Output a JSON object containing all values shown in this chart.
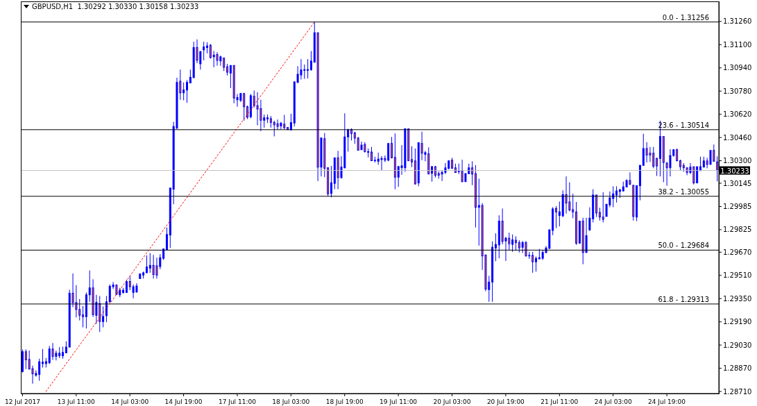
{
  "chart_data": {
    "type": "candlestick",
    "title": "GBPUSD,H1  1.30292 1.30330 1.30158 1.30233",
    "categories": [
      "12 Jul 2017",
      null,
      null,
      null,
      null,
      null,
      null,
      null,
      null,
      null,
      null,
      null,
      null,
      null,
      null,
      null,
      "13 Jul 11:00",
      null,
      null,
      null,
      null,
      null,
      null,
      null,
      null,
      null,
      null,
      null,
      null,
      null,
      null,
      null,
      "14 Jul 03:00",
      null,
      null,
      null,
      null,
      null,
      null,
      null,
      null,
      null,
      null,
      null,
      null,
      null,
      null,
      null,
      "14 Jul 19:00",
      null,
      null,
      null,
      null,
      null,
      null,
      null,
      null,
      null,
      null,
      null,
      null,
      null,
      null,
      null,
      "17 Jul 11:00",
      null,
      null,
      null,
      null,
      null,
      null,
      null,
      null,
      null,
      null,
      null,
      null,
      null,
      null,
      null,
      "18 Jul 03:00",
      null,
      null,
      null,
      null,
      null,
      null,
      null,
      null,
      null,
      null,
      null,
      null,
      null,
      null,
      null,
      "18 Jul 19:00",
      null,
      null,
      null,
      null,
      null,
      null,
      null,
      null,
      null,
      null,
      null,
      null,
      null,
      null,
      null,
      "19 Jul 11:00",
      null,
      null,
      null,
      null,
      null,
      null,
      null,
      null,
      null,
      null,
      null,
      null,
      null,
      null,
      null,
      "20 Jul 03:00",
      null,
      null,
      null,
      null,
      null,
      null,
      null,
      null,
      null,
      null,
      null,
      null,
      null,
      null,
      null,
      "20 Jul 19:00",
      null,
      null,
      null,
      null,
      null,
      null,
      null,
      null,
      null,
      null,
      null,
      null,
      null,
      null,
      null,
      "21 Jul 11:00",
      null,
      null,
      null,
      null,
      null,
      null,
      null,
      null,
      null,
      null,
      null,
      null,
      null,
      null,
      null,
      "24 Jul 03:00",
      null,
      null,
      null,
      null,
      null,
      null,
      null,
      null,
      null,
      null,
      null,
      null,
      null,
      null,
      null,
      "24 Jul 19:00",
      null,
      null,
      null,
      null,
      null,
      null,
      null,
      null,
      null,
      null,
      null,
      null,
      null,
      null,
      null
    ],
    "color": "#0000ff",
    "colors": [
      "#0000ff",
      "#ff5a1f",
      "#ff5a1f",
      "#ff5a1f",
      "#0000ff",
      "#0000ff",
      "#0000ff",
      "#0000ff",
      "#0000ff",
      "#ff5a1f",
      "#0000ff",
      "#0000ff",
      "#0000ff",
      "#0000ff",
      "#0000ff",
      "#ff5a1f",
      "#ff5a1f",
      "#ff5a1f",
      "#ff5a1f",
      "#0000ff",
      "#0000ff",
      "#ff5a1f",
      "#0000ff",
      "#ff5a1f",
      "#0000ff",
      "#0000ff",
      "#0000ff",
      "#0000ff",
      "#ff5a1f",
      "#0000ff",
      "#0000ff",
      "#0000ff",
      "#ff5a1f",
      "#0000ff",
      "#0000ff",
      "#0000ff",
      "#0000ff",
      "#0000ff",
      "#0000ff",
      "#ff5a1f",
      "#ff5a1f",
      "#0000ff",
      "#0000ff",
      "#0000ff",
      "#0000ff",
      "#0000ff",
      "#0000ff",
      "#ff5a1f",
      "#0000ff",
      "#0000ff",
      "#0000ff",
      "#0000ff",
      "#ff5a1f",
      "#0000ff",
      "#0000ff",
      "#0000ff",
      "#ff5a1f",
      "#0000ff",
      "#ff5a1f",
      "#0000ff",
      "#ff5a1f",
      "#ff5a1f",
      "#0000ff",
      "#ff5a1f",
      "#0000ff",
      "#0000ff",
      "#ff5a1f",
      "#ff5a1f",
      "#0000ff",
      "#ff5a1f",
      "#ff5a1f",
      "#ff5a1f",
      "#0000ff",
      "#0000ff",
      "#ff5a1f",
      "#ff5a1f",
      "#ff5a1f",
      "#0000ff",
      "#ff5a1f",
      "#ff5a1f",
      "#0000ff",
      "#0000ff",
      "#0000ff",
      "#0000ff",
      "#0000ff",
      "#0000ff",
      "#0000ff",
      "#0000ff",
      "#ff5a1f",
      "#0000ff",
      "#ff5a1f",
      "#ff5a1f",
      "#0000ff",
      "#0000ff",
      "#ff5a1f",
      "#0000ff",
      "#0000ff",
      "#0000ff",
      "#ff5a1f",
      "#ff5a1f",
      "#ff5a1f",
      "#0000ff",
      "#ff5a1f",
      "#ff5a1f",
      "#ff5a1f",
      "#0000ff",
      "#0000ff",
      "#0000ff",
      "#ff5a1f",
      "#0000ff",
      "#ff5a1f",
      "#ff5a1f",
      "#0000ff",
      "#0000ff",
      "#0000ff",
      "#ff5a1f",
      "#ff5a1f",
      "#ff5a1f",
      "#0000ff",
      "#ff5a1f",
      "#0000ff",
      "#ff5a1f",
      "#0000ff",
      "#ff5a1f",
      "#ff5a1f",
      "#0000ff",
      "#0000ff",
      "#0000ff",
      "#ff5a1f",
      "#ff5a1f",
      "#0000ff",
      "#ff5a1f",
      "#0000ff",
      "#0000ff",
      "#ff5a1f",
      "#ff5a1f",
      "#0000ff",
      "#ff5a1f",
      "#ff5a1f",
      "#0000ff",
      "#0000ff",
      "#0000ff",
      "#0000ff",
      "#ff5a1f",
      "#0000ff",
      "#ff5a1f",
      "#0000ff",
      "#ff5a1f",
      "#ff5a1f",
      "#0000ff",
      "#ff5a1f",
      "#0000ff",
      "#ff5a1f",
      "#0000ff",
      "#0000ff",
      "#0000ff",
      "#0000ff",
      "#0000ff",
      "#0000ff",
      "#ff5a1f",
      "#0000ff",
      "#0000ff",
      "#ff5a1f",
      "#ff5a1f",
      "#ff5a1f",
      "#ff5a1f",
      "#0000ff",
      "#ff5a1f",
      "#0000ff",
      "#0000ff",
      "#0000ff",
      "#ff5a1f",
      "#ff5a1f",
      "#ff5a1f",
      "#0000ff",
      "#0000ff",
      "#0000ff",
      "#0000ff",
      "#0000ff",
      "#0000ff",
      "#0000ff",
      "#ff5a1f",
      "#ff5a1f",
      "#0000ff",
      "#0000ff",
      "#0000ff",
      "#ff5a1f",
      "#ff5a1f",
      "#ff5a1f",
      "#ff5a1f",
      "#0000ff",
      "#ff5a1f",
      "#ff5a1f",
      "#0000ff",
      "#0000ff",
      "#ff5a1f",
      "#ff5a1f",
      "#ff5a1f",
      "#ff5a1f",
      "#0000ff",
      "#ff5a1f",
      "#0000ff",
      "#0000ff",
      "#0000ff",
      "#ff5a1f",
      "#0000ff",
      "#ff5a1f",
      "#ff5a1f"
    ],
    "ohlc": [
      [
        1.28848,
        1.29,
        1.2884,
        1.28984
      ],
      [
        1.28984,
        1.29,
        1.28864,
        1.28928
      ],
      [
        1.28931,
        1.28992,
        1.28864,
        1.28864
      ],
      [
        1.28867,
        1.28888,
        1.28764,
        1.28832
      ],
      [
        1.28822,
        1.28856,
        1.28812,
        1.28835
      ],
      [
        1.28827,
        1.28936,
        1.28784,
        1.28915
      ],
      [
        1.28902,
        1.29003,
        1.28875,
        1.28912
      ],
      [
        1.28902,
        1.28941,
        1.28875,
        1.28916
      ],
      [
        1.28908,
        1.29024,
        1.28899,
        1.29003
      ],
      [
        1.29003,
        1.29044,
        1.28928,
        1.28952
      ],
      [
        1.28952,
        1.28992,
        1.28924,
        1.28974
      ],
      [
        1.28956,
        1.29016,
        1.2894,
        1.28974
      ],
      [
        1.28956,
        1.29019,
        1.28936,
        1.28979
      ],
      [
        1.28976,
        1.29056,
        1.28976,
        1.29016
      ],
      [
        1.29016,
        1.29411,
        1.29016,
        1.29387
      ],
      [
        1.29387,
        1.29523,
        1.29291,
        1.29323
      ],
      [
        1.29323,
        1.29443,
        1.2922,
        1.29275
      ],
      [
        1.29275,
        1.29347,
        1.292,
        1.29235
      ],
      [
        1.29238,
        1.29299,
        1.29152,
        1.29225
      ],
      [
        1.29225,
        1.29392,
        1.29144,
        1.29376
      ],
      [
        1.29376,
        1.29544,
        1.29328,
        1.29424
      ],
      [
        1.29424,
        1.29483,
        1.29224,
        1.2924
      ],
      [
        1.29235,
        1.29376,
        1.29176,
        1.29324
      ],
      [
        1.29316,
        1.29368,
        1.2912,
        1.29192
      ],
      [
        1.29192,
        1.29296,
        1.29152,
        1.29227
      ],
      [
        1.29232,
        1.29368,
        1.29187,
        1.29328
      ],
      [
        1.29328,
        1.29448,
        1.2932,
        1.29435
      ],
      [
        1.29432,
        1.29464,
        1.29416,
        1.29444
      ],
      [
        1.29444,
        1.29444,
        1.29376,
        1.29379
      ],
      [
        1.29376,
        1.29424,
        1.2936,
        1.29408
      ],
      [
        1.29392,
        1.29424,
        1.29384,
        1.29408
      ],
      [
        1.29392,
        1.2948,
        1.29392,
        1.29468
      ],
      [
        1.29468,
        1.29504,
        1.29408,
        1.29432
      ],
      [
        1.29392,
        1.29448,
        1.29352,
        1.29432
      ],
      [
        1.29395,
        1.29456,
        1.29392,
        1.29437
      ],
      [
        1.29488,
        1.29523,
        1.29488,
        1.2952
      ],
      [
        1.29512,
        1.29536,
        1.29488,
        1.29528
      ],
      [
        1.29528,
        1.29648,
        1.29528,
        1.29568
      ],
      [
        1.2956,
        1.29664,
        1.29528,
        1.29579
      ],
      [
        1.29579,
        1.29651,
        1.29488,
        1.29516
      ],
      [
        1.29576,
        1.29632,
        1.29488,
        1.29512
      ],
      [
        1.29571,
        1.29656,
        1.29552,
        1.29632
      ],
      [
        1.29628,
        1.29696,
        1.29616,
        1.29692
      ],
      [
        1.29688,
        1.2984,
        1.29688,
        1.29792
      ],
      [
        1.29788,
        1.30112,
        1.29699,
        1.30112
      ],
      [
        1.30104,
        1.30568,
        1.3,
        1.30536
      ],
      [
        1.30524,
        1.30872,
        1.3052,
        1.3084
      ],
      [
        1.30848,
        1.30928,
        1.3072,
        1.30768
      ],
      [
        1.30768,
        1.3084,
        1.30716,
        1.30788
      ],
      [
        1.30787,
        1.30856,
        1.30699,
        1.3084
      ],
      [
        1.30836,
        1.30928,
        1.30835,
        1.30875
      ],
      [
        1.30872,
        1.3112,
        1.30872,
        1.3108
      ],
      [
        1.3108,
        1.31136,
        1.30972,
        1.30992
      ],
      [
        1.30968,
        1.31056,
        1.30928,
        1.31052
      ],
      [
        1.31064,
        1.3112,
        1.30992,
        1.31084
      ],
      [
        1.3108,
        1.31116,
        1.3104,
        1.31091
      ],
      [
        1.31096,
        1.31104,
        1.31004,
        1.31011
      ],
      [
        1.31016,
        1.31056,
        1.30944,
        1.31028
      ],
      [
        1.31032,
        1.31048,
        1.30955,
        1.30992
      ],
      [
        1.30988,
        1.31024,
        1.30955,
        1.31016
      ],
      [
        1.31008,
        1.31008,
        1.30918,
        1.30944
      ],
      [
        1.30947,
        1.30968,
        1.30888,
        1.3091
      ],
      [
        1.30904,
        1.3096,
        1.308,
        1.30956
      ],
      [
        1.30956,
        1.3096,
        1.30696,
        1.30732
      ],
      [
        1.3072,
        1.3076,
        1.30672,
        1.30736
      ],
      [
        1.30716,
        1.30768,
        1.30704,
        1.30763
      ],
      [
        1.30763,
        1.30768,
        1.30576,
        1.30672
      ],
      [
        1.30672,
        1.3068,
        1.30587,
        1.306
      ],
      [
        1.30603,
        1.3076,
        1.30592,
        1.30748
      ],
      [
        1.30744,
        1.30784,
        1.30667,
        1.3068
      ],
      [
        1.3068,
        1.30772,
        1.30544,
        1.30656
      ],
      [
        1.30659,
        1.3072,
        1.30504,
        1.30579
      ],
      [
        1.30579,
        1.30619,
        1.30528,
        1.30596
      ],
      [
        1.30588,
        1.30619,
        1.3056,
        1.30596
      ],
      [
        1.3059,
        1.30608,
        1.30528,
        1.30564
      ],
      [
        1.30564,
        1.30576,
        1.30468,
        1.30548
      ],
      [
        1.30555,
        1.30584,
        1.30515,
        1.30536
      ],
      [
        1.3054,
        1.30568,
        1.30515,
        1.30558
      ],
      [
        1.30552,
        1.30616,
        1.30515,
        1.30528
      ],
      [
        1.30529,
        1.30532,
        1.30512,
        1.30515
      ],
      [
        1.30512,
        1.30624,
        1.30512,
        1.30563
      ],
      [
        1.3056,
        1.30848,
        1.30536,
        1.30843
      ],
      [
        1.3084,
        1.30952,
        1.30836,
        1.30896
      ],
      [
        1.30891,
        1.31,
        1.3086,
        1.30926
      ],
      [
        1.30923,
        1.30963,
        1.30864,
        1.30928
      ],
      [
        1.30923,
        1.31,
        1.30867,
        1.30928
      ],
      [
        1.30928,
        1.31056,
        1.3092,
        1.30987
      ],
      [
        1.30979,
        1.31256,
        1.30976,
        1.31182
      ],
      [
        1.31182,
        1.31182,
        1.3016,
        1.30256
      ],
      [
        1.30256,
        1.30457,
        1.30192,
        1.30457
      ],
      [
        1.30452,
        1.30491,
        1.30187,
        1.30248
      ],
      [
        1.30251,
        1.30256,
        1.30056,
        1.30072
      ],
      [
        1.30075,
        1.30264,
        1.30048,
        1.30148
      ],
      [
        1.30144,
        1.3032,
        1.30104,
        1.3032
      ],
      [
        1.3032,
        1.30368,
        1.30104,
        1.30184
      ],
      [
        1.30184,
        1.30331,
        1.30176,
        1.30256
      ],
      [
        1.30251,
        1.30627,
        1.30248,
        1.30464
      ],
      [
        1.30464,
        1.3052,
        1.30363,
        1.30512
      ],
      [
        1.30515,
        1.30523,
        1.3044,
        1.30488
      ],
      [
        1.30492,
        1.30499,
        1.30416,
        1.30456
      ],
      [
        1.30456,
        1.30464,
        1.30372,
        1.30372
      ],
      [
        1.30376,
        1.30432,
        1.30376,
        1.30408
      ],
      [
        1.30412,
        1.30428,
        1.30356,
        1.30363
      ],
      [
        1.30363,
        1.30384,
        1.30323,
        1.30358
      ],
      [
        1.3036,
        1.30395,
        1.303,
        1.303
      ],
      [
        1.303,
        1.30328,
        1.30288,
        1.30304
      ],
      [
        1.30296,
        1.30356,
        1.30272,
        1.30312
      ],
      [
        1.30308,
        1.30332,
        1.30232,
        1.30316
      ],
      [
        1.30316,
        1.30336,
        1.30291,
        1.30304
      ],
      [
        1.30304,
        1.30419,
        1.30296,
        1.30419
      ],
      [
        1.30419,
        1.30464,
        1.30316,
        1.3032
      ],
      [
        1.30323,
        1.30488,
        1.30104,
        1.30187
      ],
      [
        1.30187,
        1.30264,
        1.3012,
        1.3026
      ],
      [
        1.30252,
        1.30408,
        1.30203,
        1.30265
      ],
      [
        1.30252,
        1.30524,
        1.30224,
        1.3052
      ],
      [
        1.3052,
        1.30523,
        1.30299,
        1.303
      ],
      [
        1.30308,
        1.304,
        1.30256,
        1.30291
      ],
      [
        1.30299,
        1.30384,
        1.30136,
        1.3014
      ],
      [
        1.30147,
        1.30428,
        1.30124,
        1.30424
      ],
      [
        1.30419,
        1.305,
        1.30304,
        1.30352
      ],
      [
        1.30344,
        1.30368,
        1.30296,
        1.30356
      ],
      [
        1.30348,
        1.30392,
        1.30206,
        1.30209
      ],
      [
        1.30214,
        1.30264,
        1.30156,
        1.30259
      ],
      [
        1.30259,
        1.30264,
        1.30184,
        1.302
      ],
      [
        1.30212,
        1.30227,
        1.30176,
        1.302
      ],
      [
        1.30208,
        1.30232,
        1.3016,
        1.3022
      ],
      [
        1.3022,
        1.30284,
        1.30208,
        1.30251
      ],
      [
        1.30248,
        1.30304,
        1.3024,
        1.30299
      ],
      [
        1.30304,
        1.3032,
        1.30244,
        1.30248
      ],
      [
        1.30251,
        1.3028,
        1.30216,
        1.30219
      ],
      [
        1.30224,
        1.3028,
        1.30208,
        1.30227
      ],
      [
        1.30228,
        1.30307,
        1.30152,
        1.30156
      ],
      [
        1.30156,
        1.30212,
        1.30156,
        1.30212
      ],
      [
        1.30211,
        1.3028,
        1.30208,
        1.30251
      ],
      [
        1.30251,
        1.30296,
        1.30132,
        1.30208
      ],
      [
        1.30211,
        1.3027,
        1.2984,
        1.29979
      ],
      [
        1.29979,
        1.30176,
        1.29715,
        1.29992
      ],
      [
        1.29992,
        1.30008,
        1.29548,
        1.29644
      ],
      [
        1.29651,
        1.29651,
        1.294,
        1.29416
      ],
      [
        1.29412,
        1.29507,
        1.29328,
        1.29464
      ],
      [
        1.29464,
        1.29744,
        1.29328,
        1.29704
      ],
      [
        1.29699,
        1.298,
        1.29608,
        1.29723
      ],
      [
        1.2972,
        1.29924,
        1.29628,
        1.29884
      ],
      [
        1.29884,
        1.29971,
        1.29724,
        1.29744
      ],
      [
        1.29747,
        1.29776,
        1.29609,
        1.29766
      ],
      [
        1.29766,
        1.29804,
        1.29684,
        1.29728
      ],
      [
        1.29724,
        1.29792,
        1.29672,
        1.29755
      ],
      [
        1.29752,
        1.29779,
        1.2968,
        1.29736
      ],
      [
        1.29736,
        1.29752,
        1.29668,
        1.297
      ],
      [
        1.29704,
        1.29747,
        1.29664,
        1.29736
      ],
      [
        1.29736,
        1.29747,
        1.2964,
        1.29644
      ],
      [
        1.29644,
        1.29672,
        1.29624,
        1.29648
      ],
      [
        1.29648,
        1.29672,
        1.29528,
        1.29604
      ],
      [
        1.29604,
        1.2964,
        1.29536,
        1.29627
      ],
      [
        1.29624,
        1.29692,
        1.2962,
        1.29632
      ],
      [
        1.29628,
        1.29683,
        1.29616,
        1.29668
      ],
      [
        1.29667,
        1.29712,
        1.29664,
        1.29699
      ],
      [
        1.29696,
        1.29827,
        1.29692,
        1.29824
      ],
      [
        1.2982,
        1.2998,
        1.29787,
        1.29968
      ],
      [
        1.29971,
        1.29987,
        1.29836,
        1.29947
      ],
      [
        1.29923,
        1.30019,
        1.29848,
        1.29948
      ],
      [
        1.2992,
        1.30096,
        1.29912,
        1.30067
      ],
      [
        1.30067,
        1.30192,
        1.29936,
        1.30008
      ],
      [
        1.30016,
        1.30152,
        1.29952,
        1.2996
      ],
      [
        1.29963,
        1.30072,
        1.29904,
        1.29947
      ],
      [
        1.29947,
        1.30016,
        1.2972,
        1.29732
      ],
      [
        1.29732,
        1.29884,
        1.29728,
        1.29884
      ],
      [
        1.29884,
        1.29907,
        1.29587,
        1.29668
      ],
      [
        1.29668,
        1.29907,
        1.29664,
        1.29784
      ],
      [
        1.29824,
        1.29979,
        1.29816,
        1.29904
      ],
      [
        1.299,
        1.30104,
        1.29875,
        1.30064
      ],
      [
        1.30064,
        1.30064,
        1.29912,
        1.2994
      ],
      [
        1.29944,
        1.29976,
        1.29888,
        1.29912
      ],
      [
        1.29912,
        1.30083,
        1.29875,
        1.29896
      ],
      [
        1.29916,
        1.30003,
        1.29916,
        1.3
      ],
      [
        1.29996,
        1.30088,
        1.2998,
        1.30044
      ],
      [
        1.3004,
        1.30124,
        1.2998,
        1.30072
      ],
      [
        1.30064,
        1.30124,
        1.30012,
        1.30092
      ],
      [
        1.30088,
        1.30107,
        1.30044,
        1.30099
      ],
      [
        1.30092,
        1.30156,
        1.30088,
        1.3012
      ],
      [
        1.3012,
        1.30172,
        1.30115,
        1.30164
      ],
      [
        1.30164,
        1.3022,
        1.30131,
        1.30139
      ],
      [
        1.30131,
        1.30131,
        1.29888,
        1.29916
      ],
      [
        1.29912,
        1.30128,
        1.29884,
        1.30128
      ],
      [
        1.30128,
        1.30272,
        1.30027,
        1.30268
      ],
      [
        1.30268,
        1.30486,
        1.30268,
        1.30384
      ],
      [
        1.30384,
        1.30428,
        1.30288,
        1.30339
      ],
      [
        1.30352,
        1.30395,
        1.30291,
        1.30339
      ],
      [
        1.30352,
        1.30395,
        1.30248,
        1.30262
      ],
      [
        1.30316,
        1.3032,
        1.30195,
        1.30264
      ],
      [
        1.30316,
        1.30576,
        1.30192,
        1.30467
      ],
      [
        1.30467,
        1.30467,
        1.30152,
        1.30288
      ],
      [
        1.30284,
        1.30291,
        1.30128,
        1.30252
      ],
      [
        1.30252,
        1.3038,
        1.30192,
        1.30336
      ],
      [
        1.30336,
        1.3038,
        1.30328,
        1.30376
      ],
      [
        1.30376,
        1.30384,
        1.30296,
        1.303
      ],
      [
        1.303,
        1.30307,
        1.30232,
        1.30259
      ],
      [
        1.30268,
        1.30284,
        1.30224,
        1.30252
      ],
      [
        1.30251,
        1.30256,
        1.302,
        1.30219
      ],
      [
        1.30219,
        1.30284,
        1.30208,
        1.30256
      ],
      [
        1.30259,
        1.30259,
        1.30136,
        1.30147
      ],
      [
        1.30147,
        1.30259,
        1.30147,
        1.30259
      ],
      [
        1.30232,
        1.30328,
        1.30232,
        1.30259
      ],
      [
        1.30256,
        1.30328,
        1.30256,
        1.30299
      ],
      [
        1.30299,
        1.3032,
        1.30248,
        1.30275
      ],
      [
        1.30275,
        1.30371,
        1.30272,
        1.30371
      ],
      [
        1.30371,
        1.30412,
        1.30296,
        1.30296
      ],
      [
        1.30292,
        1.3033,
        1.30158,
        1.30233
      ]
    ],
    "series": [
      {
        "type": "line",
        "color": "#ff0000",
        "line_style": "dotted",
        "values": [
          null,
          null,
          null,
          null,
          null,
          null,
          null,
          1.2871,
          null,
          null,
          null,
          null,
          null,
          null,
          null,
          null,
          null,
          null,
          null,
          null,
          null,
          null,
          null,
          null,
          null,
          null,
          null,
          null,
          null,
          null,
          null,
          null,
          null,
          null,
          null,
          null,
          null,
          null,
          null,
          null,
          null,
          null,
          null,
          null,
          null,
          null,
          null,
          null,
          null,
          null,
          null,
          null,
          null,
          null,
          null,
          null,
          null,
          null,
          null,
          null,
          null,
          null,
          null,
          null,
          null,
          null,
          null,
          null,
          null,
          null,
          null,
          null,
          null,
          null,
          null,
          null,
          null,
          null,
          null,
          null,
          null,
          null,
          null,
          null,
          null,
          null,
          null,
          1.31256,
          null,
          null,
          null,
          null,
          null,
          null,
          null,
          null,
          null,
          null,
          null,
          null,
          null,
          null,
          null,
          null,
          null,
          null,
          null,
          null,
          null,
          null,
          null,
          null,
          null,
          null,
          null,
          null,
          null,
          null,
          null,
          null,
          null,
          null,
          null,
          null,
          null,
          null,
          null,
          null,
          null,
          null,
          null,
          null,
          null,
          null,
          null,
          null,
          null,
          null,
          null,
          null,
          null,
          null,
          null,
          null,
          null,
          null,
          null,
          null,
          null,
          null,
          null,
          null,
          null,
          null,
          null,
          null,
          null,
          null,
          null,
          null,
          null,
          null,
          null,
          null,
          null,
          null,
          null,
          null,
          null,
          null,
          null,
          null,
          null,
          null,
          null,
          null,
          null,
          null,
          null,
          null,
          null,
          null,
          null,
          null,
          null,
          null,
          null,
          null,
          null,
          null,
          null,
          null,
          null,
          null,
          null,
          null,
          null,
          null,
          null,
          null,
          null,
          null,
          null,
          null,
          null,
          null,
          null,
          null
        ]
      }
    ],
    "ylim": [
      1.28696,
      1.31398
    ],
    "yticks": [
      {
        "value": 1.3126,
        "label": "1.31260"
      },
      {
        "value": 1.311,
        "label": "1.31100"
      },
      {
        "value": 1.3094,
        "label": "1.30940"
      },
      {
        "value": 1.3078,
        "label": "1.30780"
      },
      {
        "value": 1.3062,
        "label": "1.30620"
      },
      {
        "value": 1.3046,
        "label": "1.30460"
      },
      {
        "value": 1.303,
        "label": "1.30300"
      },
      {
        "value": 1.30145,
        "label": "1.30145"
      },
      {
        "value": 1.29985,
        "label": "1.29985"
      },
      {
        "value": 1.29825,
        "label": "1.29825"
      },
      {
        "value": 1.2967,
        "label": "1.29670"
      },
      {
        "value": 1.2951,
        "label": "1.29510"
      },
      {
        "value": 1.2935,
        "label": "1.29350"
      },
      {
        "value": 1.2919,
        "label": "1.29190"
      },
      {
        "value": 1.2903,
        "label": "1.29030"
      },
      {
        "value": 1.2887,
        "label": "1.28870"
      },
      {
        "value": 1.2871,
        "label": "1.28710"
      }
    ],
    "ref_lines": [
      {
        "axis": "y",
        "value": 1.31256,
        "color": "#000000"
      },
      {
        "axis": "y",
        "value": 1.30514,
        "color": "#000000"
      },
      {
        "axis": "y",
        "value": 1.30055,
        "color": "#000000"
      },
      {
        "axis": "y",
        "value": 1.29684,
        "color": "#000000"
      },
      {
        "axis": "y",
        "value": 1.29313,
        "color": "#000000"
      },
      {
        "axis": "y",
        "value": 1.30233,
        "color": "#c0c0c0"
      }
    ],
    "annotations": [
      "1.30233",
      {
        "text": "0.0 - 1.31256",
        "y": 1.31256
      },
      {
        "text": "23.6 - 1.30514",
        "y": 1.30514
      },
      {
        "text": "38.2 - 1.30055",
        "y": 1.30055
      },
      {
        "text": "50.0 - 1.29684",
        "y": 1.29684
      },
      {
        "text": "61.8 - 1.29313",
        "y": 1.29313
      }
    ]
  }
}
